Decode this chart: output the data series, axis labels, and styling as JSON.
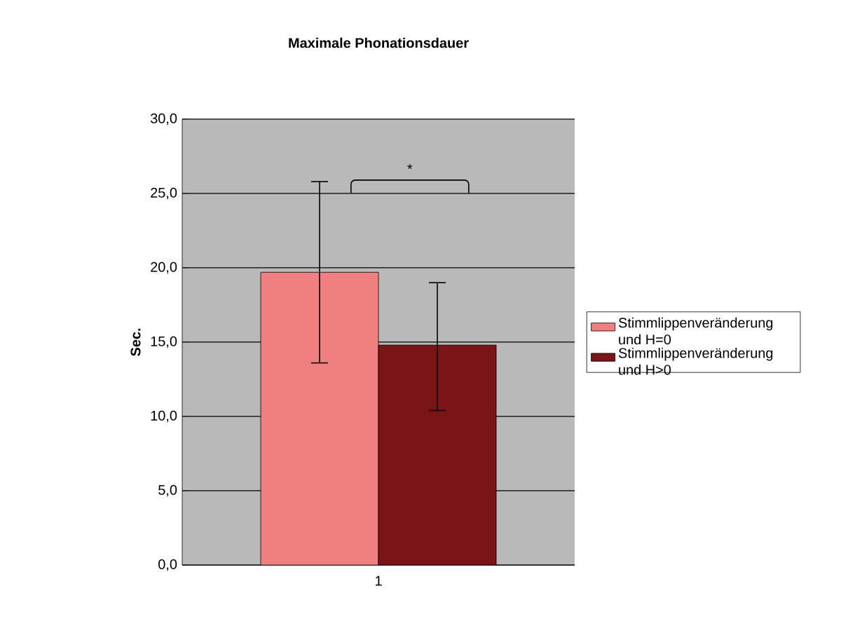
{
  "chart_data": {
    "type": "bar",
    "title": "Maximale Phonationsdauer",
    "ylabel": "Sec.",
    "categories": [
      "1"
    ],
    "series": [
      {
        "name": "Stimmlippenveränderung und  H=0",
        "color": "#f08080",
        "values": [
          19.7
        ],
        "errors": [
          [
            13.6,
            25.8
          ]
        ]
      },
      {
        "name": "Stimmlippenveränderung und H>0",
        "color": "#7a1416",
        "values": [
          14.8
        ],
        "errors": [
          [
            10.4,
            19.0
          ]
        ]
      }
    ],
    "ylim": [
      0,
      30
    ],
    "yticks": [
      {
        "value": 0,
        "label": "0,0"
      },
      {
        "value": 5,
        "label": "5,0"
      },
      {
        "value": 10,
        "label": "10,0"
      },
      {
        "value": 15,
        "label": "15,0"
      },
      {
        "value": 20,
        "label": "20,0"
      },
      {
        "value": 25,
        "label": "25,0"
      },
      {
        "value": 30,
        "label": "30,0"
      }
    ],
    "grid": "y",
    "legend": "right",
    "annotations": [
      "*"
    ]
  }
}
